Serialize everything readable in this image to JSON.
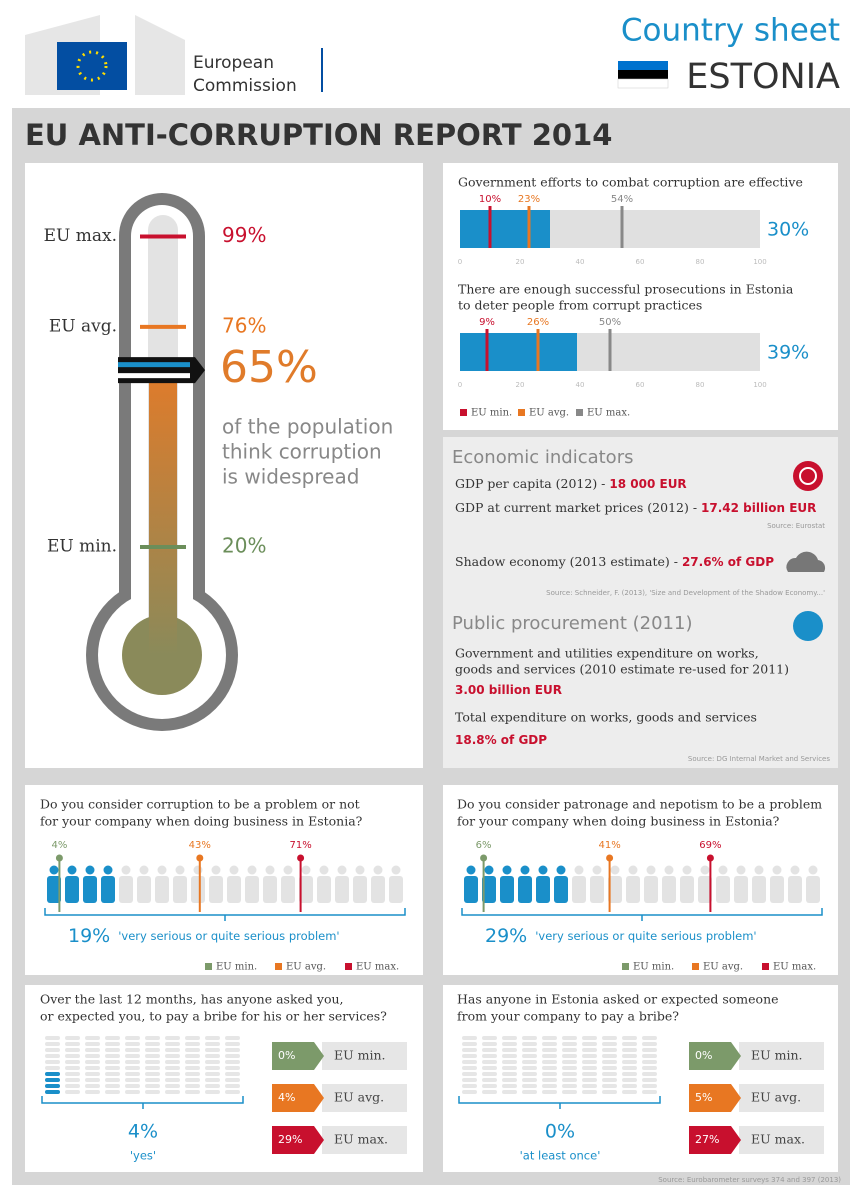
{
  "header": {
    "org_line1": "European",
    "org_line2": "Commission",
    "sheet_title": "Country sheet",
    "country": "ESTONIA"
  },
  "report_title": "EU ANTI-CORRUPTION REPORT 2014",
  "thermometer": {
    "markers": [
      {
        "name": "EU max.",
        "value": 99,
        "label": "99%",
        "color": "#c8102e"
      },
      {
        "name": "EU avg.",
        "value": 76,
        "label": "76%",
        "color": "#e87722"
      },
      {
        "name": "EU min.",
        "value": 20,
        "label": "20%",
        "color": "#6b8e5a"
      }
    ],
    "country": {
      "value": 65,
      "label": "65%",
      "color": "#e07b2a"
    },
    "caption": [
      "of the population",
      "think corruption",
      "is widespread"
    ]
  },
  "bar_charts": {
    "ticks": [
      0,
      20,
      40,
      60,
      80,
      100
    ],
    "colors": {
      "min": "#c8102e",
      "avg": "#e87722",
      "max": "#888888",
      "country": "#1a8fc9"
    },
    "legend": [
      "EU min.",
      "EU avg.",
      "EU max."
    ],
    "items": [
      {
        "question": [
          "Government efforts to combat corruption are effective"
        ],
        "min": {
          "value": 10,
          "label": "10%"
        },
        "avg": {
          "value": 23,
          "label": "23%"
        },
        "max": {
          "value": 54,
          "label": "54%"
        },
        "country": {
          "value": 30,
          "label": "30%"
        }
      },
      {
        "question": [
          "There are enough successful prosecutions in Estonia",
          "to deter people from corrupt practices"
        ],
        "min": {
          "value": 9,
          "label": "9%"
        },
        "avg": {
          "value": 26,
          "label": "26%"
        },
        "max": {
          "value": 50,
          "label": "50%"
        },
        "country": {
          "value": 39,
          "label": "39%"
        }
      }
    ]
  },
  "economic": {
    "title": "Economic indicators",
    "gdp_capita": {
      "label": "GDP per capita (2012) - ",
      "value": "18 000 EUR"
    },
    "gdp_market": {
      "label": "GDP at current market prices (2012) - ",
      "value": "17.42 billion EUR"
    },
    "source1": "Source: Eurostat",
    "shadow": {
      "label": "Shadow economy (2013 estimate) - ",
      "value": "27.6% of GDP"
    },
    "source2": "Source: Schneider, F. (2013), 'Size and Development of the Shadow Economy...'",
    "procurement_title": "Public procurement (2011)",
    "gov_expenditure": {
      "label": [
        "Government and utilities expenditure on works,",
        "goods and services (2010 estimate re-used for 2011)"
      ],
      "value": "3.00 billion EUR"
    },
    "total_expenditure": {
      "label": "Total expenditure on works, goods and services",
      "value": "18.8% of GDP"
    },
    "source3": "Source: DG Internal Market and Services"
  },
  "people_charts": {
    "colors": {
      "min": "#7c9a6a",
      "avg": "#e87722",
      "max": "#c8102e",
      "country": "#1a8fc9"
    },
    "legend": [
      "EU min.",
      "EU avg.",
      "EU max."
    ],
    "items": [
      {
        "question": [
          "Do you consider corruption to be a problem or not",
          "for your company when doing business in Estonia?"
        ],
        "min": {
          "value": 4,
          "label": "4%"
        },
        "avg": {
          "value": 43,
          "label": "43%"
        },
        "max": {
          "value": 71,
          "label": "71%"
        },
        "country": {
          "value": 19,
          "label": "19%"
        },
        "caption": "'very serious or quite serious problem'"
      },
      {
        "question": [
          "Do you consider patronage and nepotism to be a problem",
          "for your company when doing business in Estonia?"
        ],
        "min": {
          "value": 6,
          "label": "6%"
        },
        "avg": {
          "value": 41,
          "label": "41%"
        },
        "max": {
          "value": 69,
          "label": "69%"
        },
        "country": {
          "value": 29,
          "label": "29%"
        },
        "caption": "'very serious or quite serious problem'"
      }
    ]
  },
  "bribe_charts": {
    "colors": {
      "min": "#7c9a6a",
      "avg": "#e87722",
      "max": "#c8102e",
      "country": "#1a8fc9"
    },
    "names": {
      "min": "EU min.",
      "avg": "EU avg.",
      "max": "EU max."
    },
    "items": [
      {
        "question": [
          "Over the last 12 months, has anyone asked you,",
          "or expected you, to pay a bribe for his or her services?"
        ],
        "min": {
          "value": 0,
          "label": "0%"
        },
        "avg": {
          "value": 4,
          "label": "4%"
        },
        "max": {
          "value": 29,
          "label": "29%"
        },
        "country": {
          "value": 4,
          "label": "4%"
        },
        "caption": "'yes'"
      },
      {
        "question": [
          "Has anyone in Estonia asked or expected someone",
          "from your company to pay a bribe?"
        ],
        "min": {
          "value": 0,
          "label": "0%"
        },
        "avg": {
          "value": 5,
          "label": "5%"
        },
        "max": {
          "value": 27,
          "label": "27%"
        },
        "country": {
          "value": 0,
          "label": "0%"
        },
        "caption": "'at least once'"
      }
    ]
  },
  "footer_source": "Source: Eurobarometer surveys 374 and 397 (2013)"
}
